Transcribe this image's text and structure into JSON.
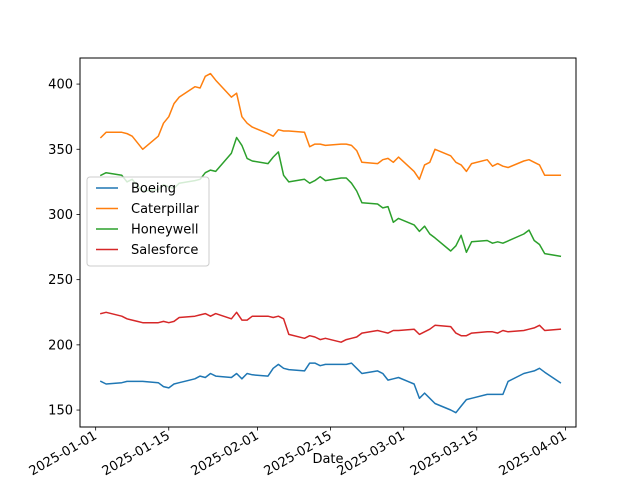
{
  "chart_data": {
    "type": "line",
    "title": "",
    "xlabel": "Date",
    "ylabel": "",
    "x_ticks": [
      "2025-01-01",
      "2025-01-15",
      "2025-02-01",
      "2025-02-15",
      "2025-03-01",
      "2025-03-15",
      "2025-04-01"
    ],
    "y_ticks": [
      150,
      200,
      250,
      300,
      350,
      400
    ],
    "xlim": [
      "2024-12-29",
      "2025-04-03"
    ],
    "ylim": [
      137,
      420
    ],
    "grid": false,
    "legend_position": "center-left",
    "series": [
      {
        "name": "Boeing",
        "color": "#1f77b4",
        "points": [
          [
            "2025-01-02",
            172
          ],
          [
            "2025-01-03",
            170
          ],
          [
            "2025-01-06",
            171
          ],
          [
            "2025-01-07",
            172
          ],
          [
            "2025-01-08",
            172
          ],
          [
            "2025-01-09",
            172
          ],
          [
            "2025-01-10",
            172
          ],
          [
            "2025-01-13",
            171
          ],
          [
            "2025-01-14",
            168
          ],
          [
            "2025-01-15",
            167
          ],
          [
            "2025-01-16",
            170
          ],
          [
            "2025-01-17",
            171
          ],
          [
            "2025-01-20",
            174
          ],
          [
            "2025-01-21",
            176
          ],
          [
            "2025-01-22",
            175
          ],
          [
            "2025-01-23",
            178
          ],
          [
            "2025-01-24",
            176
          ],
          [
            "2025-01-27",
            175
          ],
          [
            "2025-01-28",
            178
          ],
          [
            "2025-01-29",
            174
          ],
          [
            "2025-01-30",
            178
          ],
          [
            "2025-01-31",
            177
          ],
          [
            "2025-02-03",
            176
          ],
          [
            "2025-02-04",
            182
          ],
          [
            "2025-02-05",
            185
          ],
          [
            "2025-02-06",
            182
          ],
          [
            "2025-02-07",
            181
          ],
          [
            "2025-02-10",
            180
          ],
          [
            "2025-02-11",
            186
          ],
          [
            "2025-02-12",
            186
          ],
          [
            "2025-02-13",
            184
          ],
          [
            "2025-02-14",
            185
          ],
          [
            "2025-02-17",
            185
          ],
          [
            "2025-02-18",
            185
          ],
          [
            "2025-02-19",
            186
          ],
          [
            "2025-02-20",
            182
          ],
          [
            "2025-02-21",
            178
          ],
          [
            "2025-02-24",
            180
          ],
          [
            "2025-02-25",
            178
          ],
          [
            "2025-02-26",
            173
          ],
          [
            "2025-02-27",
            174
          ],
          [
            "2025-02-28",
            175
          ],
          [
            "2025-03-03",
            170
          ],
          [
            "2025-03-04",
            159
          ],
          [
            "2025-03-05",
            163
          ],
          [
            "2025-03-06",
            159
          ],
          [
            "2025-03-07",
            155
          ],
          [
            "2025-03-10",
            150
          ],
          [
            "2025-03-11",
            148
          ],
          [
            "2025-03-12",
            153
          ],
          [
            "2025-03-13",
            158
          ],
          [
            "2025-03-14",
            159
          ],
          [
            "2025-03-17",
            162
          ],
          [
            "2025-03-18",
            162
          ],
          [
            "2025-03-19",
            162
          ],
          [
            "2025-03-20",
            162
          ],
          [
            "2025-03-21",
            172
          ],
          [
            "2025-03-24",
            178
          ],
          [
            "2025-03-25",
            179
          ],
          [
            "2025-03-26",
            180
          ],
          [
            "2025-03-27",
            182
          ],
          [
            "2025-03-28",
            179
          ],
          [
            "2025-03-31",
            171
          ]
        ]
      },
      {
        "name": "Caterpillar",
        "color": "#ff7f0e",
        "points": [
          [
            "2025-01-02",
            359
          ],
          [
            "2025-01-03",
            363
          ],
          [
            "2025-01-06",
            363
          ],
          [
            "2025-01-07",
            362
          ],
          [
            "2025-01-08",
            360
          ],
          [
            "2025-01-10",
            350
          ],
          [
            "2025-01-13",
            360
          ],
          [
            "2025-01-14",
            370
          ],
          [
            "2025-01-15",
            375
          ],
          [
            "2025-01-16",
            385
          ],
          [
            "2025-01-17",
            390
          ],
          [
            "2025-01-20",
            398
          ],
          [
            "2025-01-21",
            397
          ],
          [
            "2025-01-22",
            406
          ],
          [
            "2025-01-23",
            408
          ],
          [
            "2025-01-24",
            403
          ],
          [
            "2025-01-27",
            390
          ],
          [
            "2025-01-28",
            393
          ],
          [
            "2025-01-29",
            375
          ],
          [
            "2025-01-30",
            370
          ],
          [
            "2025-01-31",
            367
          ],
          [
            "2025-02-03",
            362
          ],
          [
            "2025-02-04",
            360
          ],
          [
            "2025-02-05",
            365
          ],
          [
            "2025-02-06",
            364
          ],
          [
            "2025-02-07",
            364
          ],
          [
            "2025-02-10",
            363
          ],
          [
            "2025-02-11",
            352
          ],
          [
            "2025-02-12",
            354
          ],
          [
            "2025-02-13",
            354
          ],
          [
            "2025-02-14",
            353
          ],
          [
            "2025-02-17",
            354
          ],
          [
            "2025-02-18",
            354
          ],
          [
            "2025-02-19",
            353
          ],
          [
            "2025-02-20",
            349
          ],
          [
            "2025-02-21",
            340
          ],
          [
            "2025-02-24",
            339
          ],
          [
            "2025-02-25",
            342
          ],
          [
            "2025-02-26",
            343
          ],
          [
            "2025-02-27",
            340
          ],
          [
            "2025-02-28",
            344
          ],
          [
            "2025-03-03",
            333
          ],
          [
            "2025-03-04",
            327
          ],
          [
            "2025-03-05",
            338
          ],
          [
            "2025-03-06",
            340
          ],
          [
            "2025-03-07",
            350
          ],
          [
            "2025-03-10",
            345
          ],
          [
            "2025-03-11",
            340
          ],
          [
            "2025-03-12",
            338
          ],
          [
            "2025-03-13",
            333
          ],
          [
            "2025-03-14",
            339
          ],
          [
            "2025-03-17",
            342
          ],
          [
            "2025-03-18",
            337
          ],
          [
            "2025-03-19",
            339
          ],
          [
            "2025-03-20",
            337
          ],
          [
            "2025-03-21",
            336
          ],
          [
            "2025-03-24",
            341
          ],
          [
            "2025-03-25",
            342
          ],
          [
            "2025-03-26",
            340
          ],
          [
            "2025-03-27",
            338
          ],
          [
            "2025-03-28",
            330
          ],
          [
            "2025-03-31",
            330
          ]
        ]
      },
      {
        "name": "Honeywell",
        "color": "#2ca02c",
        "points": [
          [
            "2025-01-02",
            330
          ],
          [
            "2025-01-03",
            332
          ],
          [
            "2025-01-06",
            330
          ],
          [
            "2025-01-07",
            325
          ],
          [
            "2025-01-08",
            327
          ],
          [
            "2025-01-09",
            322
          ],
          [
            "2025-01-10",
            318
          ],
          [
            "2025-01-13",
            319
          ],
          [
            "2025-01-14",
            323
          ],
          [
            "2025-01-15",
            321
          ],
          [
            "2025-01-16",
            320
          ],
          [
            "2025-01-17",
            324
          ],
          [
            "2025-01-20",
            326
          ],
          [
            "2025-01-21",
            327
          ],
          [
            "2025-01-22",
            332
          ],
          [
            "2025-01-23",
            334
          ],
          [
            "2025-01-24",
            333
          ],
          [
            "2025-01-27",
            347
          ],
          [
            "2025-01-28",
            359
          ],
          [
            "2025-01-29",
            353
          ],
          [
            "2025-01-30",
            343
          ],
          [
            "2025-01-31",
            341
          ],
          [
            "2025-02-03",
            339
          ],
          [
            "2025-02-04",
            344
          ],
          [
            "2025-02-05",
            348
          ],
          [
            "2025-02-06",
            330
          ],
          [
            "2025-02-07",
            325
          ],
          [
            "2025-02-10",
            327
          ],
          [
            "2025-02-11",
            324
          ],
          [
            "2025-02-12",
            326
          ],
          [
            "2025-02-13",
            329
          ],
          [
            "2025-02-14",
            326
          ],
          [
            "2025-02-17",
            328
          ],
          [
            "2025-02-18",
            328
          ],
          [
            "2025-02-19",
            324
          ],
          [
            "2025-02-20",
            318
          ],
          [
            "2025-02-21",
            309
          ],
          [
            "2025-02-24",
            308
          ],
          [
            "2025-02-25",
            305
          ],
          [
            "2025-02-26",
            306
          ],
          [
            "2025-02-27",
            294
          ],
          [
            "2025-02-28",
            297
          ],
          [
            "2025-03-03",
            292
          ],
          [
            "2025-03-04",
            287
          ],
          [
            "2025-03-05",
            291
          ],
          [
            "2025-03-06",
            285
          ],
          [
            "2025-03-07",
            282
          ],
          [
            "2025-03-10",
            272
          ],
          [
            "2025-03-11",
            276
          ],
          [
            "2025-03-12",
            284
          ],
          [
            "2025-03-13",
            271
          ],
          [
            "2025-03-14",
            279
          ],
          [
            "2025-03-17",
            280
          ],
          [
            "2025-03-18",
            278
          ],
          [
            "2025-03-19",
            279
          ],
          [
            "2025-03-20",
            278
          ],
          [
            "2025-03-24",
            285
          ],
          [
            "2025-03-25",
            288
          ],
          [
            "2025-03-26",
            280
          ],
          [
            "2025-03-27",
            277
          ],
          [
            "2025-03-28",
            270
          ],
          [
            "2025-03-31",
            268
          ]
        ]
      },
      {
        "name": "Salesforce",
        "color": "#d62728",
        "points": [
          [
            "2025-01-02",
            224
          ],
          [
            "2025-01-03",
            225
          ],
          [
            "2025-01-06",
            222
          ],
          [
            "2025-01-07",
            220
          ],
          [
            "2025-01-08",
            219
          ],
          [
            "2025-01-09",
            218
          ],
          [
            "2025-01-10",
            217
          ],
          [
            "2025-01-13",
            217
          ],
          [
            "2025-01-14",
            218
          ],
          [
            "2025-01-15",
            217
          ],
          [
            "2025-01-16",
            218
          ],
          [
            "2025-01-17",
            221
          ],
          [
            "2025-01-20",
            222
          ],
          [
            "2025-01-21",
            223
          ],
          [
            "2025-01-22",
            224
          ],
          [
            "2025-01-23",
            222
          ],
          [
            "2025-01-24",
            224
          ],
          [
            "2025-01-27",
            220
          ],
          [
            "2025-01-28",
            225
          ],
          [
            "2025-01-29",
            219
          ],
          [
            "2025-01-30",
            219
          ],
          [
            "2025-01-31",
            222
          ],
          [
            "2025-02-03",
            222
          ],
          [
            "2025-02-04",
            221
          ],
          [
            "2025-02-05",
            222
          ],
          [
            "2025-02-06",
            220
          ],
          [
            "2025-02-07",
            208
          ],
          [
            "2025-02-10",
            205
          ],
          [
            "2025-02-11",
            207
          ],
          [
            "2025-02-12",
            206
          ],
          [
            "2025-02-13",
            204
          ],
          [
            "2025-02-14",
            205
          ],
          [
            "2025-02-17",
            202
          ],
          [
            "2025-02-18",
            204
          ],
          [
            "2025-02-19",
            205
          ],
          [
            "2025-02-20",
            206
          ],
          [
            "2025-02-21",
            209
          ],
          [
            "2025-02-24",
            211
          ],
          [
            "2025-02-25",
            210
          ],
          [
            "2025-02-26",
            209
          ],
          [
            "2025-02-27",
            211
          ],
          [
            "2025-02-28",
            211
          ],
          [
            "2025-03-03",
            212
          ],
          [
            "2025-03-04",
            208
          ],
          [
            "2025-03-05",
            210
          ],
          [
            "2025-03-06",
            212
          ],
          [
            "2025-03-07",
            215
          ],
          [
            "2025-03-10",
            214
          ],
          [
            "2025-03-11",
            209
          ],
          [
            "2025-03-12",
            207
          ],
          [
            "2025-03-13",
            207
          ],
          [
            "2025-03-14",
            209
          ],
          [
            "2025-03-17",
            210
          ],
          [
            "2025-03-18",
            210
          ],
          [
            "2025-03-19",
            209
          ],
          [
            "2025-03-20",
            211
          ],
          [
            "2025-03-21",
            210
          ],
          [
            "2025-03-24",
            211
          ],
          [
            "2025-03-25",
            212
          ],
          [
            "2025-03-26",
            213
          ],
          [
            "2025-03-27",
            215
          ],
          [
            "2025-03-28",
            211
          ],
          [
            "2025-03-31",
            212
          ]
        ]
      }
    ]
  }
}
